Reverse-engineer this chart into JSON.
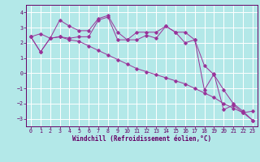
{
  "x": [
    0,
    1,
    2,
    3,
    4,
    5,
    6,
    7,
    8,
    9,
    10,
    11,
    12,
    13,
    14,
    15,
    16,
    17,
    18,
    19,
    20,
    21,
    22,
    23
  ],
  "line1": [
    2.4,
    2.6,
    2.3,
    2.4,
    2.3,
    2.4,
    2.4,
    3.5,
    3.7,
    2.2,
    2.2,
    2.7,
    2.7,
    2.7,
    3.1,
    2.7,
    2.0,
    2.2,
    0.5,
    -0.1,
    -1.1,
    -2.0,
    -2.5,
    -3.1
  ],
  "line2": [
    2.4,
    1.4,
    2.3,
    3.5,
    3.1,
    2.8,
    2.8,
    3.6,
    3.8,
    2.7,
    2.2,
    2.2,
    2.5,
    2.3,
    3.1,
    2.7,
    2.7,
    2.2,
    -1.1,
    -0.05,
    -2.4,
    -2.1,
    -2.6,
    -2.5
  ],
  "line3": [
    2.4,
    1.4,
    2.3,
    2.4,
    2.2,
    2.1,
    1.8,
    1.5,
    1.2,
    0.9,
    0.6,
    0.3,
    0.1,
    -0.1,
    -0.3,
    -0.5,
    -0.7,
    -1.0,
    -1.3,
    -1.6,
    -2.0,
    -2.3,
    -2.6,
    -3.1
  ],
  "line_color": "#993399",
  "bg_color": "#b3e8e8",
  "grid_color": "#ffffff",
  "ylim": [
    -3.5,
    4.5
  ],
  "xlim": [
    -0.5,
    23.5
  ],
  "yticks": [
    -3,
    -2,
    -1,
    0,
    1,
    2,
    3,
    4
  ],
  "xticks": [
    0,
    1,
    2,
    3,
    4,
    5,
    6,
    7,
    8,
    9,
    10,
    11,
    12,
    13,
    14,
    15,
    16,
    17,
    18,
    19,
    20,
    21,
    22,
    23
  ],
  "xlabel": "Windchill (Refroidissement éolien,°C)",
  "tick_color": "#660066",
  "label_fontsize": 5.5,
  "tick_fontsize": 4.8,
  "marker": "D",
  "markersize": 1.8,
  "linewidth": 0.7
}
